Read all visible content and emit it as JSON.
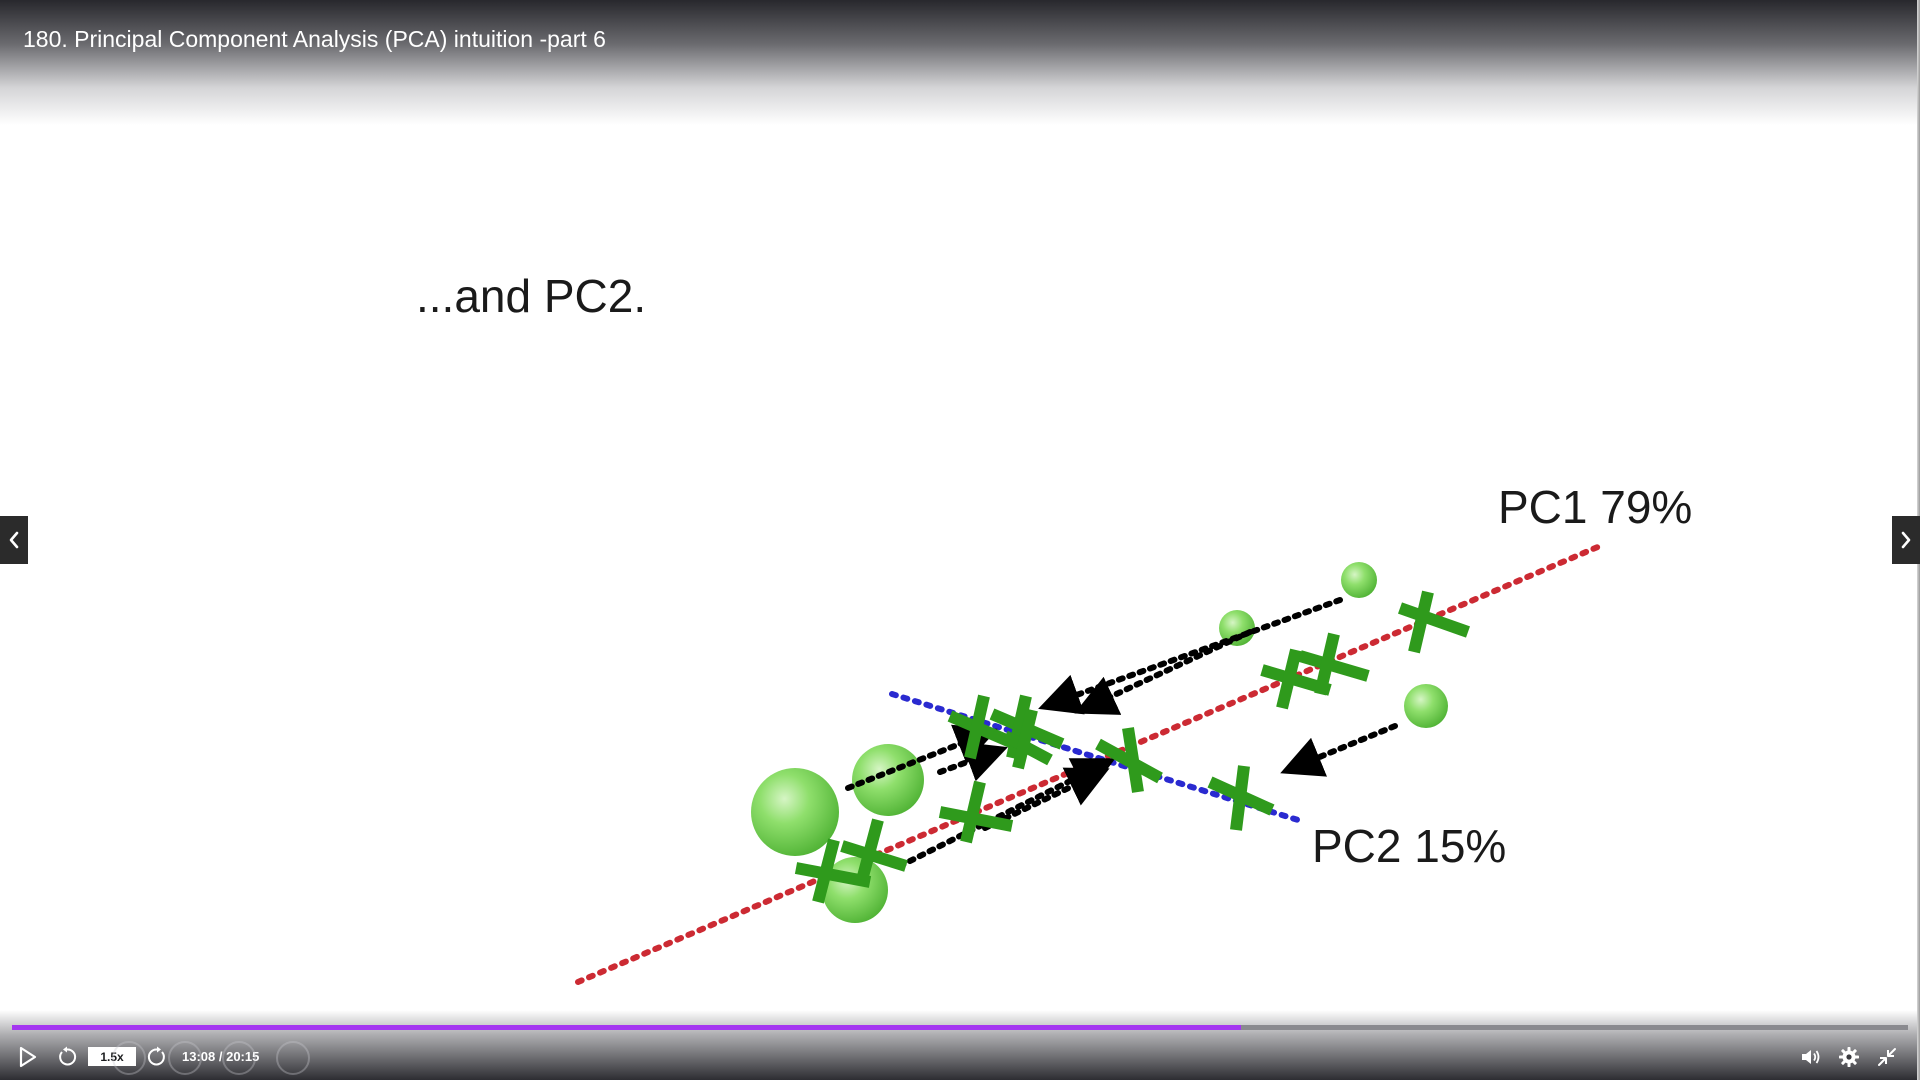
{
  "video": {
    "title": "180. Principal Component Analysis (PCA) intuition -part 6"
  },
  "slide": {
    "heading": "...and PC2.",
    "pc1_label": "PC1 79%",
    "pc2_label": "PC2 15%"
  },
  "navigation": {
    "prev_icon": "chevron-left-icon",
    "next_icon": "chevron-right-icon"
  },
  "playback": {
    "progress_fraction": 0.648,
    "speed_label": "1.5x",
    "time_label": "13:08 / 20:15",
    "progress_color": "#a435f0"
  },
  "colors": {
    "pc1_line": "#cc2a33",
    "pc2_line": "#2a2ad0",
    "cross": "#2f9a1c",
    "sphere": "#7ad85a"
  },
  "icons": {
    "play": "play-icon",
    "rewind": "rewind-5-icon",
    "forward": "forward-5-icon",
    "volume": "volume-icon",
    "settings": "gear-icon",
    "exit_fullscreen": "exit-fullscreen-icon"
  }
}
